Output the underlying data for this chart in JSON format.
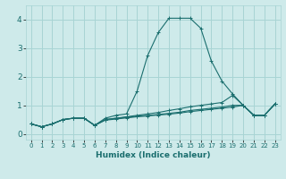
{
  "title": "",
  "xlabel": "Humidex (Indice chaleur)",
  "ylabel": "",
  "bg_color": "#ceeaea",
  "grid_color": "#a8d4d4",
  "line_color": "#1a6e6e",
  "xlim": [
    -0.5,
    23.5
  ],
  "ylim": [
    -0.2,
    4.5
  ],
  "xticks": [
    0,
    1,
    2,
    3,
    4,
    5,
    6,
    7,
    8,
    9,
    10,
    11,
    12,
    13,
    14,
    15,
    16,
    17,
    18,
    19,
    20,
    21,
    22,
    23
  ],
  "yticks": [
    0,
    1,
    2,
    3,
    4
  ],
  "lines": [
    {
      "x": [
        0,
        1,
        2,
        3,
        4,
        5,
        6,
        7,
        8,
        9,
        10,
        11,
        12,
        13,
        14,
        15,
        16,
        17,
        18,
        19,
        20,
        21,
        22,
        23
      ],
      "y": [
        0.35,
        0.25,
        0.35,
        0.5,
        0.55,
        0.55,
        0.3,
        0.55,
        0.65,
        0.7,
        1.5,
        2.75,
        3.55,
        4.05,
        4.05,
        4.05,
        3.7,
        2.55,
        1.85,
        1.4,
        1.0,
        0.65,
        0.65,
        1.05
      ]
    },
    {
      "x": [
        0,
        1,
        2,
        3,
        4,
        5,
        6,
        7,
        8,
        9,
        10,
        11,
        12,
        13,
        14,
        15,
        16,
        17,
        18,
        19,
        20,
        21,
        22,
        23
      ],
      "y": [
        0.35,
        0.25,
        0.35,
        0.5,
        0.55,
        0.55,
        0.3,
        0.5,
        0.55,
        0.6,
        0.65,
        0.7,
        0.75,
        0.82,
        0.88,
        0.95,
        1.0,
        1.05,
        1.1,
        1.35,
        1.0,
        0.65,
        0.65,
        1.05
      ]
    },
    {
      "x": [
        0,
        1,
        2,
        3,
        4,
        5,
        6,
        7,
        8,
        9,
        10,
        11,
        12,
        13,
        14,
        15,
        16,
        17,
        18,
        19,
        20,
        21,
        22,
        23
      ],
      "y": [
        0.35,
        0.25,
        0.35,
        0.5,
        0.55,
        0.55,
        0.3,
        0.5,
        0.55,
        0.58,
        0.62,
        0.65,
        0.68,
        0.72,
        0.76,
        0.82,
        0.86,
        0.9,
        0.94,
        1.0,
        1.0,
        0.65,
        0.65,
        1.05
      ]
    },
    {
      "x": [
        0,
        1,
        2,
        3,
        4,
        5,
        6,
        7,
        8,
        9,
        10,
        11,
        12,
        13,
        14,
        15,
        16,
        17,
        18,
        19,
        20,
        21,
        22,
        23
      ],
      "y": [
        0.35,
        0.25,
        0.35,
        0.5,
        0.55,
        0.55,
        0.3,
        0.48,
        0.52,
        0.56,
        0.6,
        0.63,
        0.66,
        0.69,
        0.73,
        0.78,
        0.82,
        0.86,
        0.9,
        0.94,
        1.0,
        0.65,
        0.65,
        1.05
      ]
    }
  ]
}
